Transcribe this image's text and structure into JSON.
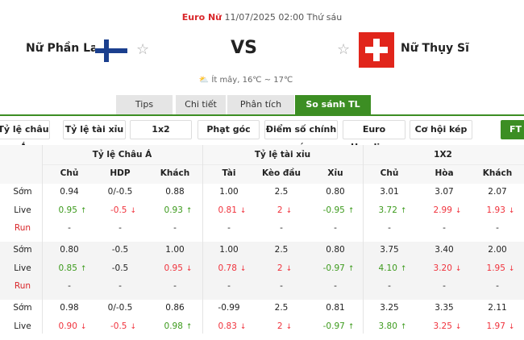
{
  "match": {
    "league": "Euro Nữ",
    "datetime": "11/07/2025 02:00 Thứ sáu",
    "home": "Nữ Phần Lan",
    "away": "Nữ Thụy Sĩ",
    "vs": "VS",
    "weather": "Ít mây, 16℃ ~ 17℃"
  },
  "tabs": [
    {
      "label": "Tips"
    },
    {
      "label": "Chi tiết"
    },
    {
      "label": "Phân tích"
    },
    {
      "label": "So sánh TL",
      "active": true
    }
  ],
  "filters": [
    "Tỷ lệ châu Á",
    "Tỷ lệ tài xỉu",
    "1x2",
    "Phạt góc",
    "Điểm số chính xác",
    "Euro Handicap",
    "Cơ hội kép"
  ],
  "ft_label": "FT",
  "colors": {
    "accent": "#3c8e23",
    "up": "#3c9a1c",
    "down": "#f0323c",
    "league": "#d9262a"
  },
  "table": {
    "groups": [
      "Tỷ lệ Châu Á",
      "Tỷ lệ tài xỉu",
      "1X2"
    ],
    "columns": [
      "Chủ",
      "HDP",
      "Khách",
      "Tài",
      "Kèo đầu",
      "Xỉu",
      "Chủ",
      "Hòa",
      "Khách"
    ],
    "blocks": [
      {
        "rows": [
          {
            "label": "Sớm",
            "cells": [
              {
                "v": "0.94"
              },
              {
                "v": "0/-0.5"
              },
              {
                "v": "0.88"
              },
              {
                "v": "1.00"
              },
              {
                "v": "2.5"
              },
              {
                "v": "0.80"
              },
              {
                "v": "3.01"
              },
              {
                "v": "3.07"
              },
              {
                "v": "2.07"
              }
            ]
          },
          {
            "label": "Live",
            "cells": [
              {
                "v": "0.95",
                "d": "up"
              },
              {
                "v": "-0.5",
                "d": "down"
              },
              {
                "v": "0.93",
                "d": "up"
              },
              {
                "v": "0.81",
                "d": "down"
              },
              {
                "v": "2",
                "d": "down"
              },
              {
                "v": "-0.95",
                "d": "up"
              },
              {
                "v": "3.72",
                "d": "up"
              },
              {
                "v": "2.99",
                "d": "down"
              },
              {
                "v": "1.93",
                "d": "down"
              }
            ]
          },
          {
            "label": "Run",
            "cells": [
              {
                "v": "-"
              },
              {
                "v": "-"
              },
              {
                "v": "-"
              },
              {
                "v": "-"
              },
              {
                "v": "-"
              },
              {
                "v": "-"
              },
              {
                "v": "-"
              },
              {
                "v": "-"
              },
              {
                "v": "-"
              }
            ]
          }
        ]
      },
      {
        "shaded": true,
        "rows": [
          {
            "label": "Sớm",
            "cells": [
              {
                "v": "0.80"
              },
              {
                "v": "-0.5"
              },
              {
                "v": "1.00"
              },
              {
                "v": "1.00"
              },
              {
                "v": "2.5"
              },
              {
                "v": "0.80"
              },
              {
                "v": "3.75"
              },
              {
                "v": "3.40"
              },
              {
                "v": "2.00"
              }
            ]
          },
          {
            "label": "Live",
            "cells": [
              {
                "v": "0.85",
                "d": "up"
              },
              {
                "v": "-0.5"
              },
              {
                "v": "0.95",
                "d": "down"
              },
              {
                "v": "0.78",
                "d": "down"
              },
              {
                "v": "2",
                "d": "down"
              },
              {
                "v": "-0.97",
                "d": "up"
              },
              {
                "v": "4.10",
                "d": "up"
              },
              {
                "v": "3.20",
                "d": "down"
              },
              {
                "v": "1.95",
                "d": "down"
              }
            ]
          },
          {
            "label": "Run",
            "cells": [
              {
                "v": "-"
              },
              {
                "v": "-"
              },
              {
                "v": "-"
              },
              {
                "v": "-"
              },
              {
                "v": "-"
              },
              {
                "v": "-"
              },
              {
                "v": "-"
              },
              {
                "v": "-"
              },
              {
                "v": "-"
              }
            ]
          }
        ]
      },
      {
        "rows": [
          {
            "label": "Sớm",
            "cells": [
              {
                "v": "0.98"
              },
              {
                "v": "0/-0.5"
              },
              {
                "v": "0.86"
              },
              {
                "v": "-0.99"
              },
              {
                "v": "2.5"
              },
              {
                "v": "0.81"
              },
              {
                "v": "3.25"
              },
              {
                "v": "3.35"
              },
              {
                "v": "2.11"
              }
            ]
          },
          {
            "label": "Live",
            "cells": [
              {
                "v": "0.90",
                "d": "down"
              },
              {
                "v": "-0.5",
                "d": "down"
              },
              {
                "v": "0.98",
                "d": "up"
              },
              {
                "v": "0.83",
                "d": "down"
              },
              {
                "v": "2",
                "d": "down"
              },
              {
                "v": "-0.97",
                "d": "up"
              },
              {
                "v": "3.80",
                "d": "up"
              },
              {
                "v": "3.25",
                "d": "down"
              },
              {
                "v": "1.97",
                "d": "down"
              }
            ]
          }
        ]
      }
    ]
  }
}
